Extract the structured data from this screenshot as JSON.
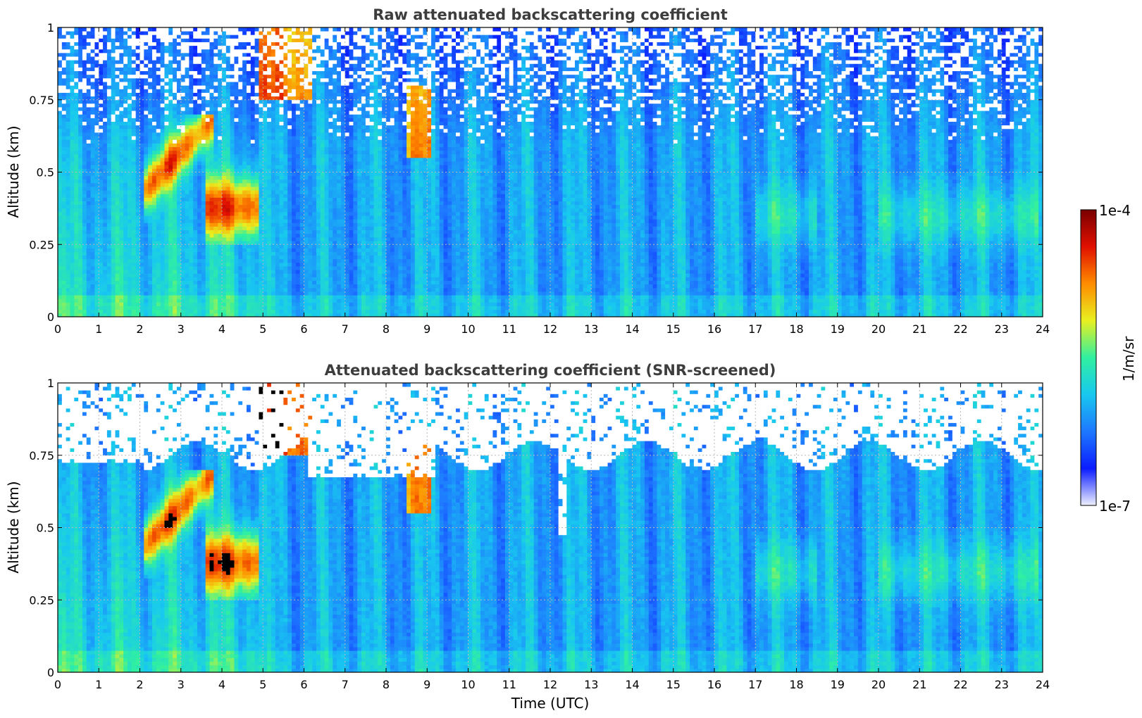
{
  "chart_data": [
    {
      "type": "heatmap",
      "title": "Raw attenuated backscattering coefficient",
      "xlabel": "",
      "ylabel": "Altitude (km)",
      "xlim": [
        0,
        24
      ],
      "ylim": [
        0,
        1
      ],
      "xticks": [
        "0",
        "1",
        "2",
        "3",
        "4",
        "5",
        "6",
        "7",
        "8",
        "9",
        "10",
        "11",
        "12",
        "13",
        "14",
        "15",
        "16",
        "17",
        "18",
        "19",
        "20",
        "21",
        "22",
        "23",
        "24"
      ],
      "yticks": [
        "0",
        "0.25",
        "0.5",
        "0.75",
        "1"
      ],
      "grid": true,
      "screened": false
    },
    {
      "type": "heatmap",
      "title": "Attenuated backscattering coefficient (SNR-screened)",
      "xlabel": "Time (UTC)",
      "ylabel": "Altitude (km)",
      "xlim": [
        0,
        24
      ],
      "ylim": [
        0,
        1
      ],
      "xticks": [
        "0",
        "1",
        "2",
        "3",
        "4",
        "5",
        "6",
        "7",
        "8",
        "9",
        "10",
        "11",
        "12",
        "13",
        "14",
        "15",
        "16",
        "17",
        "18",
        "19",
        "20",
        "21",
        "22",
        "23",
        "24"
      ],
      "yticks": [
        "0",
        "0.25",
        "0.5",
        "0.75",
        "1"
      ],
      "grid": true,
      "screened": true
    }
  ],
  "colorbar": {
    "label": "1/m/sr",
    "max_label": "1e-4",
    "min_label": "1e-7",
    "scale": "log",
    "colormap": [
      "#eef0ff",
      "#0a1cff",
      "#1e78ff",
      "#18c8f0",
      "#30f0a0",
      "#e8f020",
      "#ff8c00",
      "#e01000",
      "#7a0000"
    ]
  }
}
